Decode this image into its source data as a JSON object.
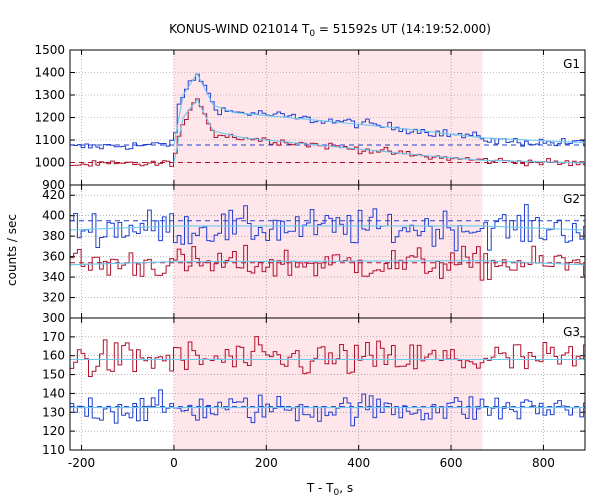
{
  "chart_data": {
    "type": "line",
    "title": {
      "prefix": "KONUS-WIND 021014 T",
      "sub": "0",
      "suffix": " = 51592s UT (14:19:52.000)"
    },
    "xlabel": {
      "prefix": "T - T",
      "sub": "0",
      "suffix": ", s"
    },
    "ylabel": "counts / sec",
    "xlim": [
      -225,
      890
    ],
    "xticks": [
      -200,
      0,
      200,
      400,
      600,
      800
    ],
    "shaded_interval": [
      0,
      668
    ],
    "grid": true,
    "bin_width": 8,
    "colors": {
      "blue": "#1f3fd1",
      "red": "#b0102a",
      "fit": "#6fc8f0",
      "shade": "#ffe6ea",
      "grid": "#888888"
    },
    "panels": [
      {
        "name": "G1",
        "ylim": [
          900,
          1500
        ],
        "yticks": [
          900,
          1000,
          1100,
          1200,
          1300,
          1400,
          1500
        ],
        "series": [
          {
            "color": "blue",
            "background": 1078,
            "noise": 10,
            "profile": [
              [
                -225,
                1068
              ],
              [
                -100,
                1075
              ],
              [
                -10,
                1080
              ],
              [
                0,
                1110
              ],
              [
                10,
                1230
              ],
              [
                20,
                1300
              ],
              [
                35,
                1350
              ],
              [
                50,
                1392
              ],
              [
                60,
                1370
              ],
              [
                75,
                1300
              ],
              [
                90,
                1245
              ],
              [
                120,
                1225
              ],
              [
                200,
                1215
              ],
              [
                300,
                1190
              ],
              [
                400,
                1175
              ],
              [
                500,
                1150
              ],
              [
                600,
                1125
              ],
              [
                668,
                1110
              ],
              [
                700,
                1095
              ],
              [
                890,
                1085
              ]
            ],
            "fit": [
              [
                0,
                1078
              ],
              [
                20,
                1300
              ],
              [
                50,
                1395
              ],
              [
                85,
                1255
              ],
              [
                130,
                1222
              ],
              [
                300,
                1190
              ],
              [
                500,
                1150
              ],
              [
                668,
                1110
              ],
              [
                890,
                1088
              ]
            ]
          },
          {
            "color": "red",
            "background": 1000,
            "noise": 8,
            "profile": [
              [
                -225,
                990
              ],
              [
                -10,
                995
              ],
              [
                0,
                1010
              ],
              [
                15,
                1150
              ],
              [
                35,
                1220
              ],
              [
                50,
                1280
              ],
              [
                60,
                1260
              ],
              [
                75,
                1175
              ],
              [
                90,
                1125
              ],
              [
                150,
                1110
              ],
              [
                250,
                1090
              ],
              [
                350,
                1070
              ],
              [
                450,
                1050
              ],
              [
                550,
                1025
              ],
              [
                668,
                1010
              ],
              [
                890,
                995
              ]
            ],
            "fit": [
              [
                0,
                1000
              ],
              [
                20,
                1200
              ],
              [
                50,
                1280
              ],
              [
                85,
                1140
              ],
              [
                150,
                1110
              ],
              [
                350,
                1070
              ],
              [
                550,
                1030
              ],
              [
                668,
                1010
              ],
              [
                890,
                998
              ]
            ]
          }
        ]
      },
      {
        "name": "G2",
        "ylim": [
          300,
          430
        ],
        "yticks": [
          300,
          320,
          340,
          360,
          380,
          400,
          420
        ],
        "series": [
          {
            "color": "blue",
            "background": 395,
            "noise": 9,
            "profile": [
              [
                -225,
                388
              ],
              [
                890,
                388
              ]
            ],
            "fit": [
              [
                -225,
                386
              ],
              [
                0,
                390
              ],
              [
                668,
                390
              ],
              [
                890,
                386
              ]
            ]
          },
          {
            "color": "red",
            "background": 354,
            "noise": 8,
            "profile": [
              [
                -225,
                353
              ],
              [
                890,
                353
              ]
            ],
            "fit": [
              [
                -225,
                352
              ],
              [
                0,
                355
              ],
              [
                668,
                356
              ],
              [
                890,
                352
              ]
            ]
          }
        ]
      },
      {
        "name": "G3",
        "ylim": [
          110,
          180
        ],
        "yticks": [
          110,
          120,
          130,
          140,
          150,
          160,
          170
        ],
        "series": [
          {
            "color": "red",
            "background": 158,
            "noise": 5,
            "profile": [
              [
                -225,
                158
              ],
              [
                890,
                158
              ]
            ],
            "fit": [
              [
                -225,
                158
              ],
              [
                890,
                158
              ]
            ]
          },
          {
            "color": "blue",
            "background": 133,
            "noise": 4,
            "profile": [
              [
                -225,
                132
              ],
              [
                890,
                132
              ]
            ],
            "fit": [
              [
                -225,
                132.5
              ],
              [
                890,
                132.5
              ]
            ]
          }
        ]
      }
    ]
  }
}
